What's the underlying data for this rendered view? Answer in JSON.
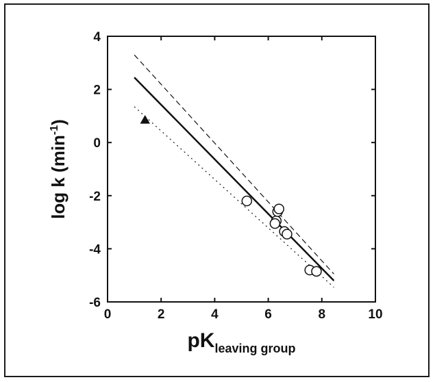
{
  "chart_data": {
    "type": "scatter",
    "xlabel": {
      "main": "pK",
      "sub": "leaving group"
    },
    "ylabel": {
      "main": "log k (min",
      "sup": "-1",
      "tail": ")"
    },
    "xlim": [
      0,
      10
    ],
    "ylim": [
      -6,
      4
    ],
    "xticks": [
      0,
      2,
      4,
      6,
      8,
      10
    ],
    "yticks": [
      -6,
      -4,
      -2,
      0,
      2,
      4
    ],
    "grid": false,
    "legend": "none",
    "series": [
      {
        "marker": "open-circle",
        "x": [
          5.2,
          6.3,
          6.35,
          6.4,
          6.25,
          6.6,
          6.7,
          7.55,
          7.8
        ],
        "y": [
          -2.2,
          -2.95,
          -2.6,
          -2.5,
          -3.05,
          -3.35,
          -3.45,
          -4.8,
          -4.85
        ]
      },
      {
        "marker": "filled-triangle",
        "x": [
          1.4
        ],
        "y": [
          0.85
        ]
      }
    ],
    "lines": [
      {
        "style": "solid",
        "x": [
          1.0,
          8.45
        ],
        "y": [
          2.45,
          -5.2
        ]
      },
      {
        "style": "dashed",
        "x": [
          1.0,
          8.45
        ],
        "y": [
          3.3,
          -4.95
        ]
      },
      {
        "style": "dotted",
        "x": [
          1.0,
          8.45
        ],
        "y": [
          1.35,
          -5.45
        ]
      }
    ]
  },
  "colors": {
    "ink": "#111111",
    "background": "#ffffff"
  }
}
